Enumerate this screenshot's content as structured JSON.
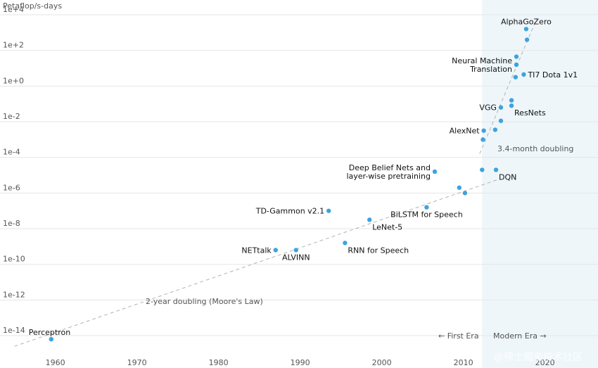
{
  "chart_data": {
    "type": "scatter",
    "title": "",
    "ylabel": "Petaflop/s-days",
    "xlabel": "",
    "y_scale": "log10",
    "xlim": [
      1956.5,
      2026.5
    ],
    "ylim_exp": [
      -14.0,
      4.0
    ],
    "x_ticks": [
      1960,
      1970,
      1980,
      1990,
      2000,
      2010,
      2020
    ],
    "x_tick_labels": [
      "1960",
      "1970",
      "1980",
      "1990",
      "2000",
      "2010",
      "2020"
    ],
    "y_ticks_exp": [
      4,
      2,
      0,
      -2,
      -4,
      -6,
      -8,
      -10,
      -12,
      -14
    ],
    "y_tick_labels": [
      "1e+4",
      "1e+2",
      "1e+0",
      "1e-2",
      "1e-4",
      "1e-6",
      "1e-8",
      "1e-10",
      "1e-12",
      "1e-14"
    ],
    "grid": "horizontal",
    "modern_era_start": 2012.3,
    "points": [
      {
        "x": 1959.5,
        "y_exp": -14.2,
        "label": "Perceptron",
        "label_pos": "above"
      },
      {
        "x": 1987.0,
        "y_exp": -9.2,
        "label": "NETtalk",
        "label_pos": "left"
      },
      {
        "x": 1989.5,
        "y_exp": -9.2,
        "label": "ALVINN",
        "label_pos": "below"
      },
      {
        "x": 1993.5,
        "y_exp": -7.0,
        "label": "TD-Gammon v2.1",
        "label_pos": "left"
      },
      {
        "x": 1995.5,
        "y_exp": -8.8,
        "label": "RNN for Speech",
        "label_pos": "below-right"
      },
      {
        "x": 1998.5,
        "y_exp": -7.5,
        "label": "LeNet-5",
        "label_pos": "below-right"
      },
      {
        "x": 2005.5,
        "y_exp": -6.8,
        "label": "BiLSTM for Speech",
        "label_pos": "below"
      },
      {
        "x": 2006.5,
        "y_exp": -4.8,
        "label": "Deep Belief Nets and layer-wise pretraining",
        "label_pos": "left"
      },
      {
        "x": 2009.5,
        "y_exp": -5.7,
        "label": "",
        "label_pos": ""
      },
      {
        "x": 2010.2,
        "y_exp": -6.0,
        "label": "",
        "label_pos": ""
      },
      {
        "x": 2012.3,
        "y_exp": -4.7,
        "label": "",
        "label_pos": ""
      },
      {
        "x": 2014.0,
        "y_exp": -4.7,
        "label": "DQN",
        "label_pos": "below-right"
      },
      {
        "x": 2012.4,
        "y_exp": -3.0,
        "label": "",
        "label_pos": ""
      },
      {
        "x": 2012.5,
        "y_exp": -2.5,
        "label": "AlexNet",
        "label_pos": "left"
      },
      {
        "x": 2013.9,
        "y_exp": -2.45,
        "label": "",
        "label_pos": ""
      },
      {
        "x": 2014.6,
        "y_exp": -1.95,
        "label": "",
        "label_pos": ""
      },
      {
        "x": 2014.6,
        "y_exp": -1.2,
        "label": "VGG",
        "label_pos": "left"
      },
      {
        "x": 2015.9,
        "y_exp": -1.1,
        "label": "ResNets",
        "label_pos": "below-right"
      },
      {
        "x": 2015.9,
        "y_exp": -0.8,
        "label": "",
        "label_pos": ""
      },
      {
        "x": 2016.4,
        "y_exp": 0.5,
        "label": "",
        "label_pos": ""
      },
      {
        "x": 2016.5,
        "y_exp": 1.2,
        "label": "Neural Machine Translation",
        "label_pos": "left"
      },
      {
        "x": 2016.5,
        "y_exp": 1.65,
        "label": "",
        "label_pos": ""
      },
      {
        "x": 2017.4,
        "y_exp": 0.65,
        "label": "TI7 Dota 1v1",
        "label_pos": "right"
      },
      {
        "x": 2017.8,
        "y_exp": 2.6,
        "label": "",
        "label_pos": ""
      },
      {
        "x": 2017.7,
        "y_exp": 3.2,
        "label": "AlphaGoZero",
        "label_pos": "above"
      }
    ],
    "trend_lines": [
      {
        "name": "2-year doubling (Moore's Law)",
        "from": [
          1955.0,
          -14.6
        ],
        "to": [
          2014.5,
          -5.2
        ]
      },
      {
        "name": "3.4-month doubling",
        "from": [
          2012.0,
          -3.8
        ],
        "to": [
          2019.0,
          3.8
        ]
      }
    ],
    "annotations": {
      "moore": "2-year doubling (Moore's Law)",
      "modern_doubling": "3.4-month doubling",
      "first_era": "← First Era",
      "modern_era": "Modern Era →"
    }
  },
  "watermark": "@稀土掘金技术社区",
  "colors": {
    "point": "#3ea3dd",
    "modern_band": "#eef6fa",
    "grid": "#e6e6e6",
    "trend": "#b3b3b3"
  }
}
